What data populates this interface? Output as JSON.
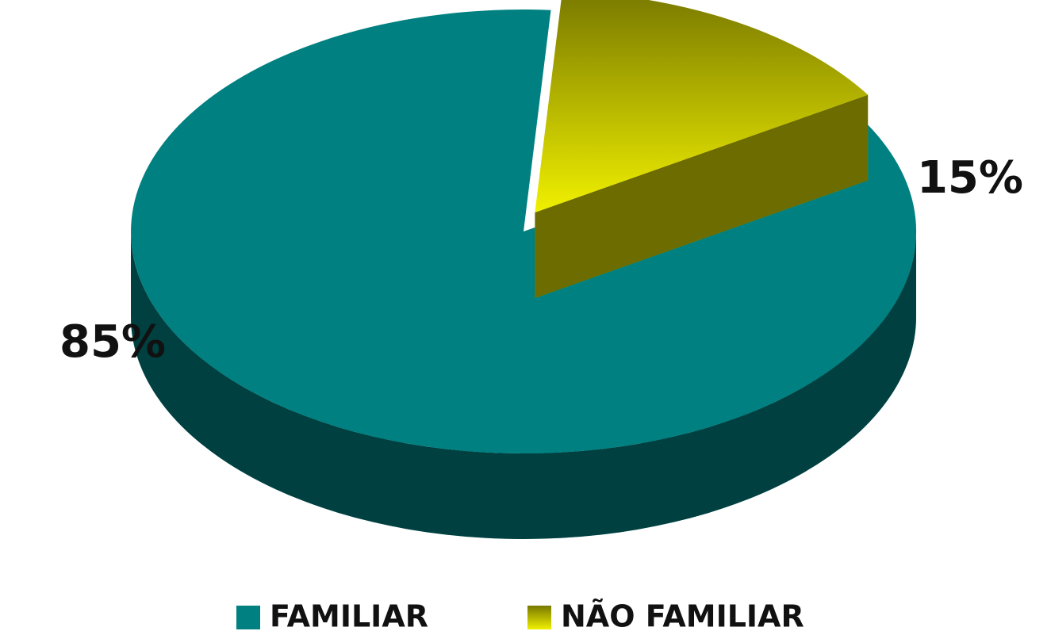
{
  "chart_data": {
    "type": "pie3d",
    "categories": [
      "FAMILIAR",
      "NÃO FAMILIAR"
    ],
    "values": [
      85,
      15
    ],
    "value_labels": [
      "85%",
      "15%"
    ],
    "colors": [
      "#008080",
      "#f0f000"
    ],
    "legend": "bottom"
  }
}
